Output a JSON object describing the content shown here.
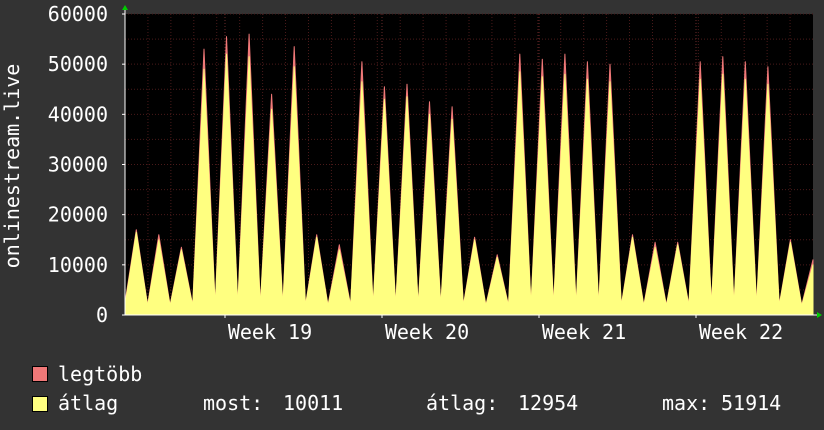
{
  "chart_data": {
    "type": "area",
    "ylabel": "onlinestream.live",
    "ylim": [
      0,
      60000
    ],
    "yticks": [
      0,
      10000,
      20000,
      30000,
      40000,
      50000,
      60000
    ],
    "xticks": [
      "Week 19",
      "Week 20",
      "Week 21",
      "Week 22"
    ],
    "grid": true,
    "colors": {
      "background": "#333333",
      "plot": "#000000",
      "grid_minor": "#4a1a1a",
      "grid_major": "#6a2a2a",
      "axis": "#ffffff",
      "arrow": "#00cc00"
    },
    "series": [
      {
        "name": "legtöbb",
        "color": "#f07878",
        "values": [
          2500,
          17000,
          2000,
          16000,
          2000,
          13500,
          2000,
          53000,
          2000,
          55500,
          2000,
          56000,
          2000,
          44000,
          2000,
          53500,
          2000,
          16000,
          2000,
          14000,
          2000,
          50500,
          2000,
          45500,
          2000,
          46000,
          2000,
          42500,
          2000,
          41500,
          2000,
          15500,
          2000,
          12000,
          2000,
          52000,
          2000,
          51000,
          2000,
          52000,
          2000,
          50500,
          2000,
          50000,
          2000,
          16000,
          2000,
          14500,
          2000,
          14500,
          2000,
          50500,
          2000,
          51500,
          2000,
          50500,
          2000,
          49500,
          2000,
          15000,
          2000,
          11000
        ]
      },
      {
        "name": "átlag",
        "color": "#ffff80",
        "values": [
          2000,
          16500,
          1800,
          15000,
          1800,
          13000,
          1800,
          49000,
          1800,
          52000,
          1800,
          51500,
          1800,
          41000,
          1800,
          49500,
          1800,
          15500,
          1800,
          13000,
          1800,
          46500,
          1800,
          43000,
          1800,
          43500,
          1800,
          40000,
          1800,
          39000,
          1800,
          15000,
          1800,
          11500,
          1800,
          48500,
          1800,
          47500,
          1800,
          48000,
          1800,
          47000,
          1800,
          46500,
          1800,
          15500,
          1800,
          13500,
          1800,
          14000,
          1800,
          47000,
          1800,
          48000,
          1800,
          47000,
          1800,
          46000,
          1800,
          14500,
          1800,
          10000
        ]
      }
    ]
  },
  "legend": {
    "max_label": "legtöbb",
    "avg_label": "átlag",
    "stats": {
      "current_label": "most:",
      "current_value": "10011",
      "average_label": "átlag:",
      "average_value": "12954",
      "max_label": "max:",
      "max_value": "51914"
    }
  }
}
